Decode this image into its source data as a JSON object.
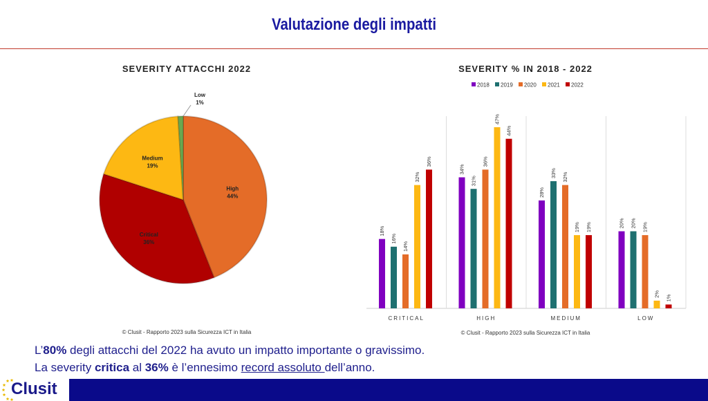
{
  "header": {
    "title": "Valutazione degli impatti"
  },
  "chart_data": [
    {
      "type": "pie",
      "title": "SEVERITY ATTACCHI 2022",
      "slices": [
        {
          "label": "High",
          "value": 44,
          "color": "#e46c28"
        },
        {
          "label": "Critical",
          "value": 36,
          "color": "#b00000"
        },
        {
          "label": "Medium",
          "value": 19,
          "color": "#fdb813"
        },
        {
          "label": "Low",
          "value": 1,
          "color": "#6aa84f"
        }
      ],
      "value_suffix": "%",
      "source": "© Clusit - Rapporto 2023 sulla Sicurezza ICT in Italia"
    },
    {
      "type": "bar",
      "title": "SEVERITY % IN 2018 - 2022",
      "categories": [
        "CRITICAL",
        "HIGH",
        "MEDIUM",
        "LOW"
      ],
      "series": [
        {
          "name": "2018",
          "color": "#8000c0",
          "values": [
            18,
            34,
            28,
            20
          ]
        },
        {
          "name": "2019",
          "color": "#1e7070",
          "values": [
            16,
            31,
            33,
            20
          ]
        },
        {
          "name": "2020",
          "color": "#e46c28",
          "values": [
            14,
            36,
            32,
            19
          ]
        },
        {
          "name": "2021",
          "color": "#fdb813",
          "values": [
            32,
            47,
            19,
            2
          ]
        },
        {
          "name": "2022",
          "color": "#c00000",
          "values": [
            36,
            44,
            19,
            1
          ]
        }
      ],
      "value_suffix": "%",
      "legend": "top",
      "ylim": [
        0,
        50
      ],
      "source": "© Clusit - Rapporto 2023 sulla Sicurezza ICT in Italia"
    }
  ],
  "footer": {
    "line1": {
      "a": "L’",
      "b": "80%",
      "c": " degli attacchi del 2022 ha avuto un impatto importante o gravissimo."
    },
    "line2": {
      "a": "La severity ",
      "b": "critica",
      "c": " al ",
      "d": "36%",
      "e": " è l’ennesimo ",
      "f": "record assoluto ",
      "g": "dell’anno."
    },
    "logo": "Clusit"
  }
}
